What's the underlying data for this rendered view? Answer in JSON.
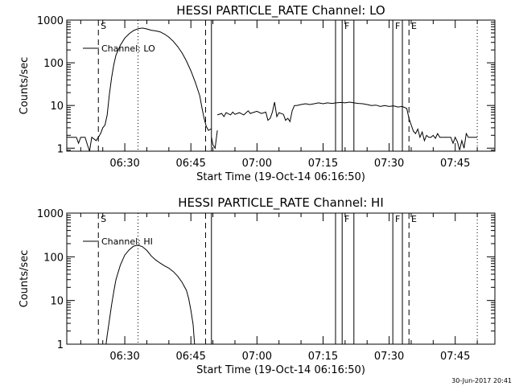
{
  "footer": {
    "timestamp": "30-Jun-2017 20:41"
  },
  "chart_data": [
    {
      "type": "line",
      "title": "HESSI PARTICLE_RATE Channel: LO",
      "xlabel": "Start Time (19-Oct-14 06:16:50)",
      "ylabel": "Counts/sec",
      "xscale": "time",
      "yscale": "log",
      "xlim": [
        "06:16:50",
        "07:54:00"
      ],
      "ylim": [
        0.85,
        1000
      ],
      "xticks": [
        "06:30",
        "06:45",
        "07:00",
        "07:15",
        "07:30",
        "07:45"
      ],
      "yticks": [
        "1",
        "10",
        "100",
        "1000"
      ],
      "legend": {
        "position": "top-left",
        "entries": [
          "Channel: LO"
        ]
      },
      "markers": {
        "dashed": [
          "06:24:00",
          "06:48:20",
          "07:34:30"
        ],
        "dotted": [
          "06:33:00",
          "07:50:00"
        ],
        "solid": [
          "06:49:40",
          "07:17:50",
          "07:19:20",
          "07:22:00",
          "07:30:50",
          "07:33:00"
        ],
        "labels": [
          {
            "text": "S",
            "time": "06:24:20"
          },
          {
            "text": "F",
            "time": "07:19:40"
          },
          {
            "text": "F",
            "time": "07:31:10"
          },
          {
            "text": "E",
            "time": "07:34:50"
          }
        ]
      },
      "series": [
        {
          "name": "Channel: LO",
          "segments": [
            [
              [
                "06:16:50",
                1.8
              ],
              [
                "06:19:00",
                1.8
              ],
              [
                "06:19:30",
                1.3
              ],
              [
                "06:20:00",
                1.8
              ],
              [
                "06:21:00",
                1.8
              ],
              [
                "06:21:30",
                1.2
              ],
              [
                "06:22:00",
                0.85
              ],
              [
                "06:22:30",
                1.8
              ],
              [
                "06:23:30",
                1.5
              ],
              [
                "06:24:00",
                1.8
              ],
              [
                "06:24:30",
                2.2
              ],
              [
                "06:25:00",
                3.0
              ],
              [
                "06:25:30",
                3.5
              ],
              [
                "06:26:00",
                6
              ],
              [
                "06:26:30",
                18
              ],
              [
                "06:27:00",
                45
              ],
              [
                "06:27:30",
                90
              ],
              [
                "06:28:00",
                150
              ],
              [
                "06:29:00",
                260
              ],
              [
                "06:30:00",
                380
              ],
              [
                "06:31:00",
                480
              ],
              [
                "06:32:00",
                570
              ],
              [
                "06:33:00",
                630
              ],
              [
                "06:34:00",
                650
              ],
              [
                "06:35:00",
                620
              ],
              [
                "06:36:00",
                580
              ],
              [
                "06:37:00",
                560
              ],
              [
                "06:38:00",
                530
              ],
              [
                "06:39:00",
                470
              ],
              [
                "06:40:00",
                400
              ],
              [
                "06:41:00",
                320
              ],
              [
                "06:42:00",
                240
              ],
              [
                "06:43:00",
                170
              ],
              [
                "06:44:00",
                110
              ],
              [
                "06:45:00",
                65
              ],
              [
                "06:46:00",
                35
              ],
              [
                "06:47:00",
                17
              ],
              [
                "06:47:30",
                9
              ],
              [
                "06:48:00",
                5
              ],
              [
                "06:48:30",
                3.2
              ],
              [
                "06:49:00",
                2.6
              ],
              [
                "06:49:30",
                2.8
              ],
              [
                "06:49:40",
                2.8
              ]
            ],
            [
              [
                "06:49:40",
                1.8
              ],
              [
                "06:50:00",
                1.2
              ],
              [
                "06:50:30",
                1.0
              ],
              [
                "06:51:00",
                2.6
              ]
            ],
            [
              [
                "06:51:00",
                6
              ],
              [
                "06:52:00",
                6.5
              ],
              [
                "06:52:30",
                5.5
              ],
              [
                "06:53:00",
                6.8
              ],
              [
                "06:54:00",
                6
              ],
              [
                "06:54:30",
                7
              ],
              [
                "06:55:00",
                6.2
              ],
              [
                "06:56:00",
                6.8
              ],
              [
                "06:57:00",
                6
              ],
              [
                "06:58:00",
                7.5
              ],
              [
                "06:58:30",
                6.5
              ],
              [
                "06:59:00",
                6.8
              ],
              [
                "07:00:00",
                7.3
              ],
              [
                "07:01:00",
                6.5
              ],
              [
                "07:02:00",
                7
              ],
              [
                "07:02:30",
                4.5
              ],
              [
                "07:03:00",
                5
              ],
              [
                "07:03:30",
                7
              ],
              [
                "07:04:00",
                12
              ],
              [
                "07:04:30",
                5.5
              ],
              [
                "07:05:00",
                6.8
              ],
              [
                "07:06:00",
                6.2
              ],
              [
                "07:06:30",
                4.5
              ],
              [
                "07:07:00",
                5
              ],
              [
                "07:07:30",
                4.2
              ],
              [
                "07:08:00",
                7.5
              ],
              [
                "07:08:30",
                10
              ],
              [
                "07:09:00",
                10
              ],
              [
                "07:10:00",
                10.5
              ],
              [
                "07:11:00",
                11
              ],
              [
                "07:12:00",
                10.5
              ],
              [
                "07:13:00",
                11
              ],
              [
                "07:14:00",
                11.5
              ],
              [
                "07:15:00",
                11
              ],
              [
                "07:16:00",
                11.5
              ],
              [
                "07:17:00",
                11.2
              ],
              [
                "07:18:00",
                11.5
              ],
              [
                "07:19:00",
                11.8
              ],
              [
                "07:20:00",
                11.5
              ],
              [
                "07:21:00",
                12
              ],
              [
                "07:22:00",
                11.5
              ],
              [
                "07:23:00",
                11.2
              ],
              [
                "07:24:00",
                11
              ],
              [
                "07:25:00",
                10.5
              ],
              [
                "07:26:00",
                10
              ],
              [
                "07:27:00",
                10.2
              ],
              [
                "07:28:00",
                9.5
              ],
              [
                "07:29:00",
                10
              ],
              [
                "07:30:00",
                9.5
              ],
              [
                "07:31:00",
                9.8
              ],
              [
                "07:32:00",
                9.2
              ],
              [
                "07:33:00",
                9.5
              ],
              [
                "07:34:00",
                8.5
              ],
              [
                "07:34:30",
                5
              ],
              [
                "07:35:00",
                3.5
              ],
              [
                "07:35:30",
                2.5
              ],
              [
                "07:36:00",
                2.2
              ],
              [
                "07:36:30",
                2.8
              ],
              [
                "07:37:00",
                1.8
              ],
              [
                "07:37:30",
                2.4
              ],
              [
                "07:38:00",
                1.5
              ],
              [
                "07:38:30",
                2.0
              ],
              [
                "07:39:00",
                1.8
              ],
              [
                "07:39:30",
                1.8
              ],
              [
                "07:40:00",
                2.0
              ],
              [
                "07:40:30",
                1.7
              ],
              [
                "07:41:00",
                2.2
              ],
              [
                "07:41:30",
                1.8
              ],
              [
                "07:43:00",
                1.8
              ],
              [
                "07:44:00",
                1.8
              ],
              [
                "07:44:30",
                1.3
              ],
              [
                "07:45:00",
                1.8
              ],
              [
                "07:45:30",
                1.4
              ],
              [
                "07:46:00",
                0.9
              ],
              [
                "07:46:30",
                1.5
              ],
              [
                "07:47:00",
                1.0
              ],
              [
                "07:47:30",
                2.2
              ],
              [
                "07:48:00",
                1.8
              ],
              [
                "07:50:00",
                1.8
              ]
            ]
          ]
        }
      ]
    },
    {
      "type": "line",
      "title": "HESSI PARTICLE_RATE Channel: HI",
      "xlabel": "Start Time (19-Oct-14 06:16:50)",
      "ylabel": "Counts/sec",
      "xscale": "time",
      "yscale": "log",
      "xlim": [
        "06:16:50",
        "07:54:00"
      ],
      "ylim": [
        1,
        1000
      ],
      "xticks": [
        "06:30",
        "06:45",
        "07:00",
        "07:15",
        "07:30",
        "07:45"
      ],
      "yticks": [
        "1",
        "10",
        "100",
        "1000"
      ],
      "legend": {
        "position": "top-left",
        "entries": [
          "Channel: HI"
        ]
      },
      "markers": {
        "dashed": [
          "06:24:00",
          "06:48:20",
          "07:34:30"
        ],
        "dotted": [
          "06:33:00",
          "07:50:00"
        ],
        "solid": [
          "06:49:40",
          "07:17:50",
          "07:19:20",
          "07:22:00",
          "07:30:50",
          "07:33:00"
        ],
        "labels": [
          {
            "text": "S",
            "time": "06:24:20"
          },
          {
            "text": "F",
            "time": "07:19:40"
          },
          {
            "text": "F",
            "time": "07:31:10"
          },
          {
            "text": "E",
            "time": "07:34:50"
          }
        ]
      },
      "series": [
        {
          "name": "Channel: HI",
          "segments": [
            [
              [
                "06:25:45",
                1
              ],
              [
                "06:26:00",
                1.6
              ],
              [
                "06:26:30",
                3.5
              ],
              [
                "06:27:00",
                8
              ],
              [
                "06:27:30",
                16
              ],
              [
                "06:28:00",
                30
              ],
              [
                "06:29:00",
                65
              ],
              [
                "06:30:00",
                110
              ],
              [
                "06:31:00",
                145
              ],
              [
                "06:32:00",
                175
              ],
              [
                "06:33:00",
                185
              ],
              [
                "06:34:00",
                170
              ],
              [
                "06:35:00",
                140
              ],
              [
                "06:36:00",
                105
              ],
              [
                "06:37:00",
                85
              ],
              [
                "06:38:00",
                72
              ],
              [
                "06:39:00",
                62
              ],
              [
                "06:40:00",
                55
              ],
              [
                "06:41:00",
                46
              ],
              [
                "06:42:00",
                36
              ],
              [
                "06:43:00",
                26
              ],
              [
                "06:44:00",
                17
              ],
              [
                "06:44:30",
                11
              ],
              [
                "06:45:00",
                6
              ],
              [
                "06:45:30",
                2.8
              ],
              [
                "06:45:50",
                1
              ]
            ]
          ]
        }
      ]
    }
  ]
}
